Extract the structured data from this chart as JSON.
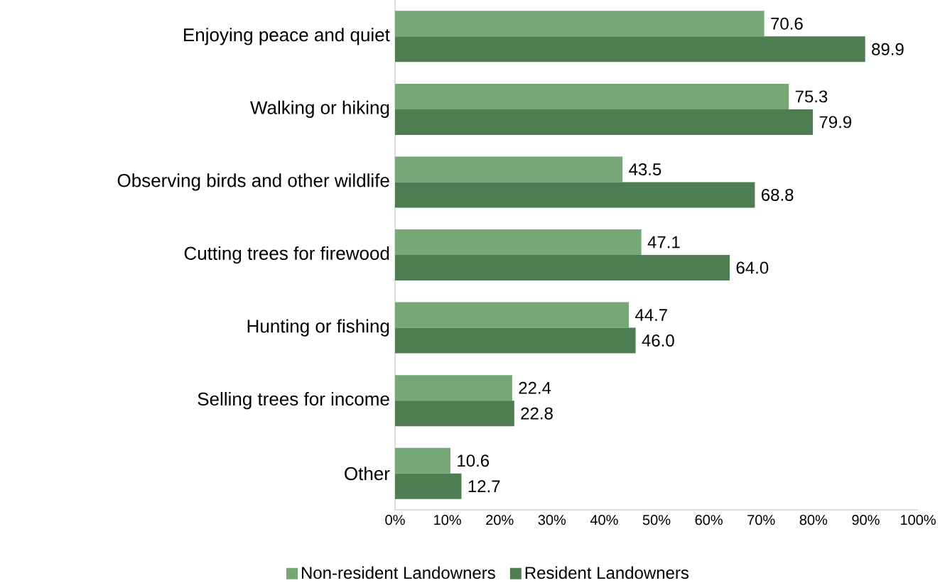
{
  "chart_data": {
    "type": "bar",
    "orientation": "horizontal",
    "categories": [
      "Enjoying peace and quiet",
      "Walking or hiking",
      "Observing birds and other wildlife",
      "Cutting trees for firewood",
      "Hunting or fishing",
      "Selling trees for income",
      "Other"
    ],
    "series": [
      {
        "name": "Non-resident Landowners",
        "color": "#76a877",
        "values": [
          70.6,
          75.3,
          43.5,
          47.1,
          44.7,
          22.4,
          10.6
        ],
        "value_labels": [
          "70.6",
          "75.3",
          "43.5",
          "47.1",
          "44.7",
          "22.4",
          "10.6"
        ]
      },
      {
        "name": "Resident Landowners",
        "color": "#4e7d51",
        "values": [
          89.9,
          79.9,
          68.8,
          64.0,
          46.0,
          22.8,
          12.7
        ],
        "value_labels": [
          "89.9",
          "79.9",
          "68.8",
          "64.0",
          "46.0",
          "22.8",
          "12.7"
        ]
      }
    ],
    "xlim": [
      0,
      100
    ],
    "xticks": [
      {
        "value": 0,
        "label": "0%"
      },
      {
        "value": 10,
        "label": "10%"
      },
      {
        "value": 20,
        "label": "20%"
      },
      {
        "value": 30,
        "label": "30%"
      },
      {
        "value": 40,
        "label": "40%"
      },
      {
        "value": 50,
        "label": "50%"
      },
      {
        "value": 60,
        "label": "60%"
      },
      {
        "value": 70,
        "label": "70%"
      },
      {
        "value": 80,
        "label": "80%"
      },
      {
        "value": 90,
        "label": "90%"
      },
      {
        "value": 100,
        "label": "100%"
      }
    ],
    "legend": "bottom",
    "grid": false
  }
}
